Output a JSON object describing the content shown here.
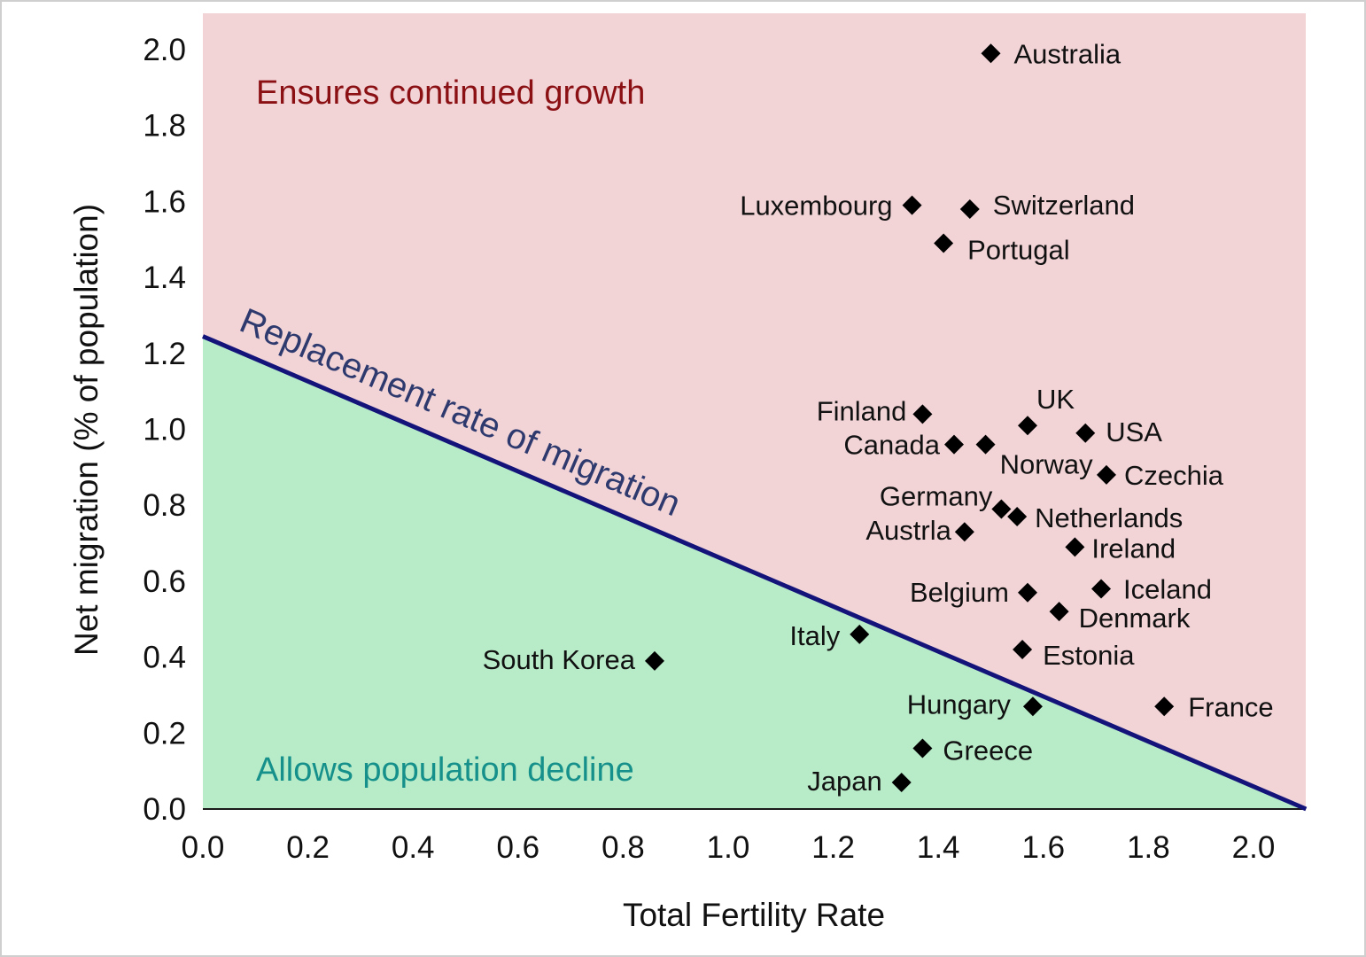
{
  "chart_data": {
    "type": "scatter",
    "title": "",
    "xlabel": "Total Fertility Rate",
    "ylabel": "Net migration (% of population)",
    "xlim": [
      0.0,
      2.1
    ],
    "ylim": [
      0.0,
      2.1
    ],
    "x_ticks": [
      "0.0",
      "0.2",
      "0.4",
      "0.6",
      "0.8",
      "1.0",
      "1.2",
      "1.4",
      "1.6",
      "1.8",
      "2.0"
    ],
    "y_ticks": [
      "0.0",
      "0.2",
      "0.4",
      "0.6",
      "0.8",
      "1.0",
      "1.2",
      "1.4",
      "1.6",
      "1.8",
      "2.0"
    ],
    "grid": false,
    "legend": "none",
    "marker": "diamond",
    "replacement_line": {
      "label": "Replacement rate of migration",
      "points": [
        [
          0.0,
          1.245
        ],
        [
          2.1,
          0.0
        ]
      ],
      "color": "#13137a"
    },
    "regions": {
      "above": {
        "label": "Ensures continued growth",
        "fill": "#f2d4d7",
        "text_color": "#8b1014"
      },
      "below": {
        "label": "Allows population decline",
        "fill": "#b8ecc9",
        "text_color": "#16908a"
      }
    },
    "points": [
      {
        "label": "Australia",
        "x": 1.5,
        "y": 1.99
      },
      {
        "label": "Luxembourg",
        "x": 1.35,
        "y": 1.59
      },
      {
        "label": "Switzerland",
        "x": 1.46,
        "y": 1.58
      },
      {
        "label": "Portugal",
        "x": 1.41,
        "y": 1.49
      },
      {
        "label": "Finland",
        "x": 1.37,
        "y": 1.04
      },
      {
        "label": "UK",
        "x": 1.57,
        "y": 1.01
      },
      {
        "label": "USA",
        "x": 1.68,
        "y": 0.99
      },
      {
        "label": "Canada",
        "x": 1.43,
        "y": 0.96
      },
      {
        "label": "Norway",
        "x": 1.49,
        "y": 0.96
      },
      {
        "label": "Czechia",
        "x": 1.72,
        "y": 0.88
      },
      {
        "label": "Germany",
        "x": 1.52,
        "y": 0.79
      },
      {
        "label": "Netherlands",
        "x": 1.55,
        "y": 0.77
      },
      {
        "label": "Austrla",
        "x": 1.45,
        "y": 0.73
      },
      {
        "label": "Ireland",
        "x": 1.66,
        "y": 0.69
      },
      {
        "label": "Belgium",
        "x": 1.57,
        "y": 0.57
      },
      {
        "label": "Iceland",
        "x": 1.71,
        "y": 0.58
      },
      {
        "label": "Denmark",
        "x": 1.63,
        "y": 0.52
      },
      {
        "label": "Italy",
        "x": 1.25,
        "y": 0.46
      },
      {
        "label": "South Korea",
        "x": 0.86,
        "y": 0.39
      },
      {
        "label": "Estonia",
        "x": 1.56,
        "y": 0.42
      },
      {
        "label": "Hungary",
        "x": 1.58,
        "y": 0.27
      },
      {
        "label": "France",
        "x": 1.83,
        "y": 0.27
      },
      {
        "label": "Greece",
        "x": 1.37,
        "y": 0.16
      },
      {
        "label": "Japan",
        "x": 1.33,
        "y": 0.07
      }
    ]
  }
}
